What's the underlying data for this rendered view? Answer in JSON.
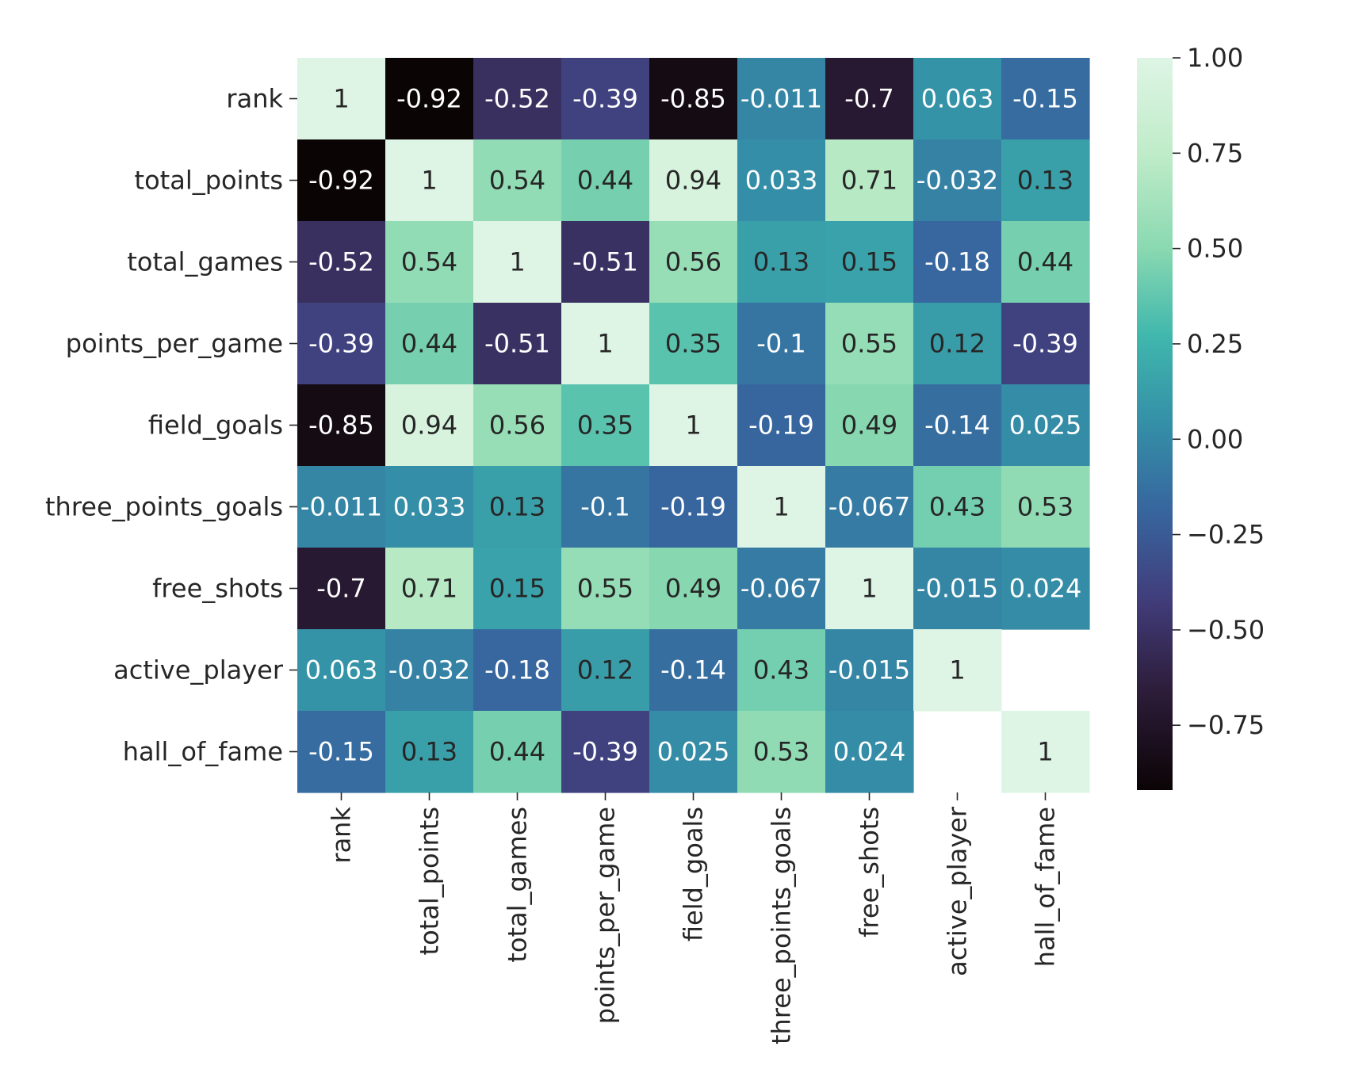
{
  "chart_data": {
    "type": "heatmap",
    "title": "",
    "xlabel": "",
    "ylabel": "",
    "row_labels": [
      "rank",
      "total_points",
      "total_games",
      "points_per_game",
      "field_goals",
      "three_points_goals",
      "free_shots",
      "active_player",
      "hall_of_fame"
    ],
    "col_labels": [
      "rank",
      "total_points",
      "total_games",
      "points_per_game",
      "field_goals",
      "three_points_goals",
      "free_shots",
      "active_player",
      "hall_of_fame"
    ],
    "values": [
      [
        1,
        -0.92,
        -0.52,
        -0.39,
        -0.85,
        -0.011,
        -0.7,
        0.063,
        -0.15
      ],
      [
        -0.92,
        1,
        0.54,
        0.44,
        0.94,
        0.033,
        0.71,
        -0.032,
        0.13
      ],
      [
        -0.52,
        0.54,
        1,
        -0.51,
        0.56,
        0.13,
        0.15,
        -0.18,
        0.44
      ],
      [
        -0.39,
        0.44,
        -0.51,
        1,
        0.35,
        -0.1,
        0.55,
        0.12,
        -0.39
      ],
      [
        -0.85,
        0.94,
        0.56,
        0.35,
        1,
        -0.19,
        0.49,
        -0.14,
        0.025
      ],
      [
        -0.011,
        0.033,
        0.13,
        -0.1,
        -0.19,
        1,
        -0.067,
        0.43,
        0.53
      ],
      [
        -0.7,
        0.71,
        0.15,
        0.55,
        0.49,
        -0.067,
        1,
        -0.015,
        0.024
      ],
      [
        0.063,
        -0.032,
        -0.18,
        0.12,
        -0.14,
        0.43,
        -0.015,
        1,
        null
      ],
      [
        -0.15,
        0.13,
        0.44,
        -0.39,
        0.025,
        0.53,
        0.024,
        null,
        1
      ]
    ],
    "colormap": "mako",
    "colorbar": {
      "vmin": -0.92,
      "vmax": 1.0,
      "ticks": [
        1.0,
        0.75,
        0.5,
        0.25,
        0.0,
        -0.25,
        -0.5,
        -0.75
      ],
      "tick_labels": [
        "1.00",
        "0.75",
        "0.50",
        "0.25",
        "0.00",
        "−0.25",
        "−0.50",
        "−0.75"
      ]
    },
    "annotation_colors": {
      "light": "#ffffff",
      "dark": "#262626"
    }
  }
}
